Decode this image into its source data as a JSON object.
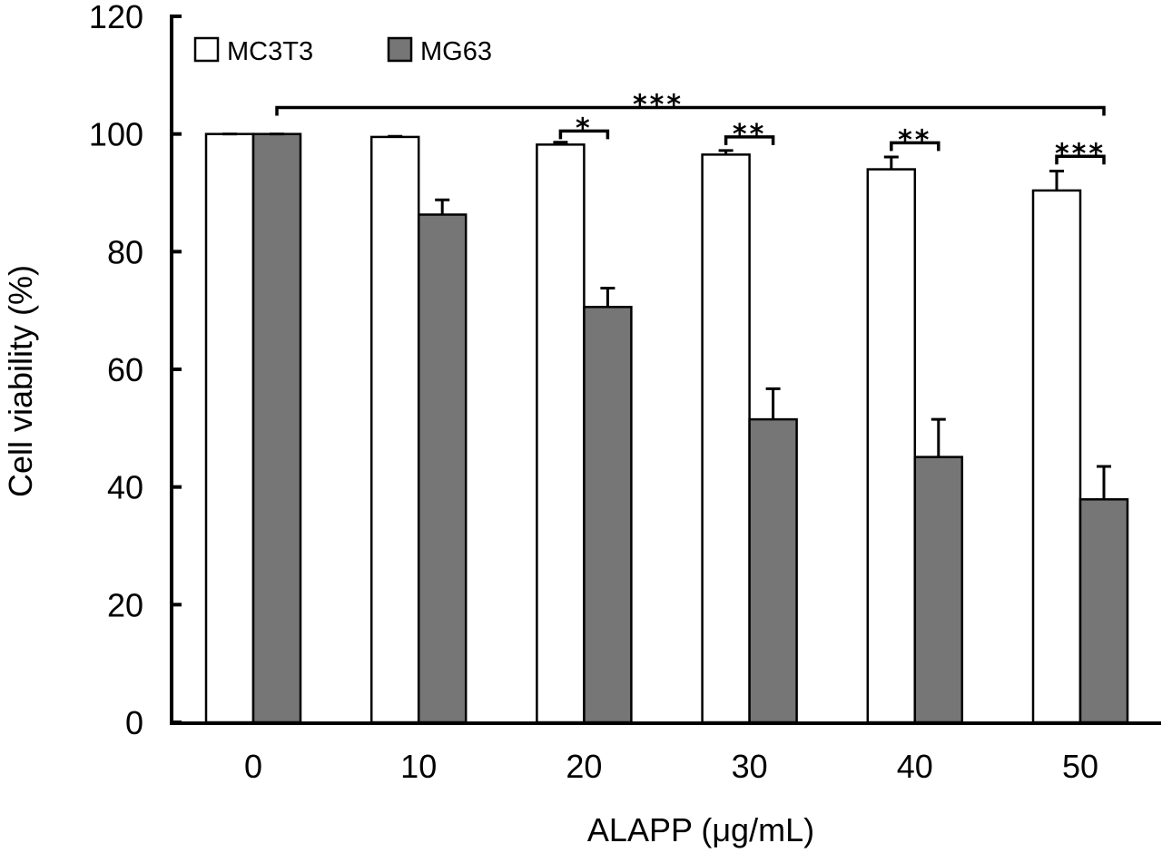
{
  "chart_data": {
    "type": "bar",
    "title": "",
    "xlabel": "ALAPP (μg/mL)",
    "ylabel": "Cell viability (%)",
    "ylim": [
      0,
      120
    ],
    "yticks": [
      0,
      20,
      40,
      60,
      80,
      100,
      120
    ],
    "categories": [
      "0",
      "10",
      "20",
      "30",
      "40",
      "50"
    ],
    "grid": false,
    "legend_position": "top-left",
    "series": [
      {
        "name": "MC3T3",
        "color": "#ffffff",
        "values": [
          100.0,
          99.5,
          98.2,
          96.5,
          94.0,
          90.4
        ],
        "errors": [
          0.0,
          0.1,
          0.4,
          0.7,
          2.1,
          3.3
        ]
      },
      {
        "name": "MG63",
        "color": "#767676",
        "values": [
          100.0,
          86.3,
          70.6,
          51.5,
          45.1,
          37.9
        ],
        "errors": [
          0.0,
          2.5,
          3.2,
          5.2,
          6.4,
          5.6
        ]
      }
    ],
    "annotations": [
      {
        "label": "***",
        "type": "bracket",
        "from": "MG63 @ 0",
        "to": "MG63 @ 50",
        "level": 104.5
      },
      {
        "label": "*",
        "type": "bracket",
        "group": "20",
        "level": 100.5
      },
      {
        "label": "**",
        "type": "bracket",
        "group": "30",
        "level": 99.5
      },
      {
        "label": "**",
        "type": "bracket",
        "group": "40",
        "level": 98.5
      },
      {
        "label": "***",
        "type": "bracket",
        "group": "50",
        "level": 96.2
      }
    ]
  }
}
